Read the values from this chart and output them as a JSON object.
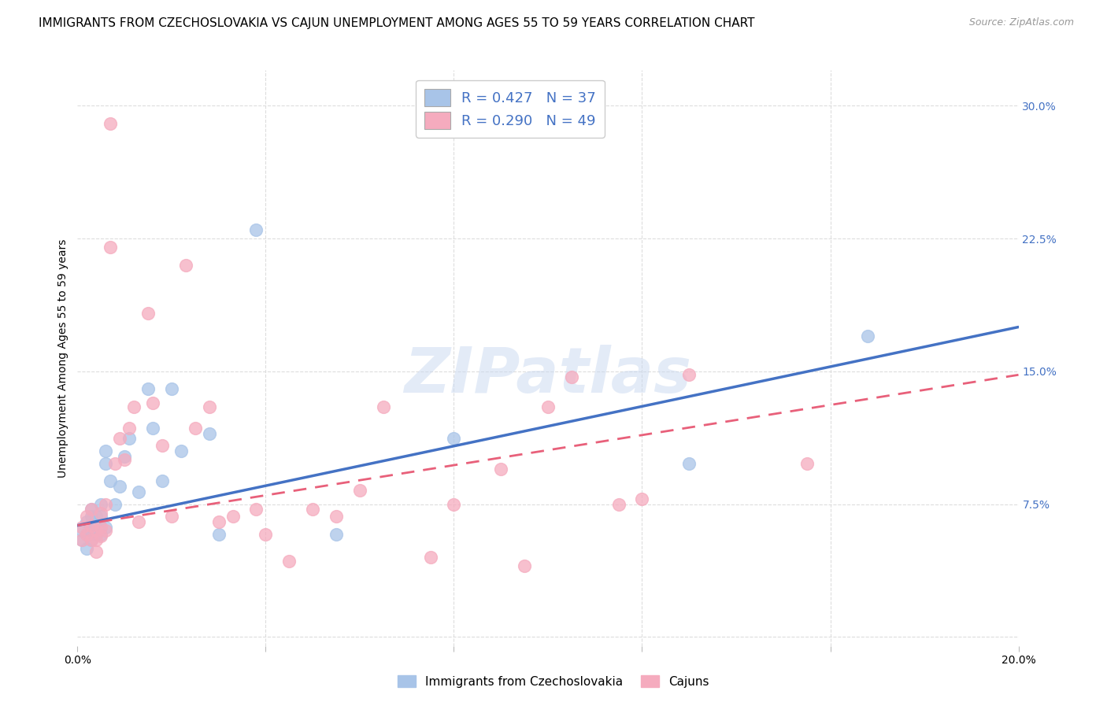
{
  "title": "IMMIGRANTS FROM CZECHOSLOVAKIA VS CAJUN UNEMPLOYMENT AMONG AGES 55 TO 59 YEARS CORRELATION CHART",
  "source": "Source: ZipAtlas.com",
  "ylabel": "Unemployment Among Ages 55 to 59 years",
  "xlim": [
    0.0,
    0.2
  ],
  "ylim": [
    -0.005,
    0.32
  ],
  "y_ticks_right": [
    0.0,
    0.075,
    0.15,
    0.225,
    0.3
  ],
  "y_tick_labels_right": [
    "",
    "7.5%",
    "15.0%",
    "22.5%",
    "30.0%"
  ],
  "legend_labels": [
    "Immigrants from Czechoslovakia",
    "Cajuns"
  ],
  "r_blue": 0.427,
  "n_blue": 37,
  "r_pink": 0.29,
  "n_pink": 49,
  "blue_color": "#A8C4E8",
  "pink_color": "#F5ABBE",
  "blue_line_color": "#4472C4",
  "pink_line_color": "#E8607A",
  "watermark": "ZIPatlas",
  "blue_points_x": [
    0.001,
    0.001,
    0.002,
    0.002,
    0.002,
    0.003,
    0.003,
    0.003,
    0.003,
    0.004,
    0.004,
    0.004,
    0.005,
    0.005,
    0.005,
    0.005,
    0.006,
    0.006,
    0.006,
    0.007,
    0.008,
    0.009,
    0.01,
    0.011,
    0.013,
    0.015,
    0.016,
    0.018,
    0.02,
    0.022,
    0.028,
    0.03,
    0.038,
    0.055,
    0.08,
    0.13,
    0.168
  ],
  "blue_points_y": [
    0.06,
    0.055,
    0.065,
    0.058,
    0.05,
    0.072,
    0.068,
    0.06,
    0.055,
    0.068,
    0.062,
    0.058,
    0.075,
    0.068,
    0.062,
    0.058,
    0.105,
    0.098,
    0.062,
    0.088,
    0.075,
    0.085,
    0.102,
    0.112,
    0.082,
    0.14,
    0.118,
    0.088,
    0.14,
    0.105,
    0.115,
    0.058,
    0.23,
    0.058,
    0.112,
    0.098,
    0.17
  ],
  "pink_points_x": [
    0.001,
    0.001,
    0.002,
    0.002,
    0.003,
    0.003,
    0.003,
    0.004,
    0.004,
    0.004,
    0.005,
    0.005,
    0.005,
    0.006,
    0.006,
    0.007,
    0.007,
    0.008,
    0.009,
    0.01,
    0.011,
    0.012,
    0.013,
    0.015,
    0.016,
    0.018,
    0.02,
    0.023,
    0.025,
    0.028,
    0.03,
    0.033,
    0.038,
    0.04,
    0.045,
    0.05,
    0.055,
    0.06,
    0.065,
    0.075,
    0.08,
    0.09,
    0.095,
    0.1,
    0.105,
    0.115,
    0.12,
    0.13,
    0.155
  ],
  "pink_points_y": [
    0.062,
    0.055,
    0.068,
    0.058,
    0.072,
    0.063,
    0.055,
    0.06,
    0.055,
    0.048,
    0.07,
    0.062,
    0.057,
    0.075,
    0.06,
    0.29,
    0.22,
    0.098,
    0.112,
    0.1,
    0.118,
    0.13,
    0.065,
    0.183,
    0.132,
    0.108,
    0.068,
    0.21,
    0.118,
    0.13,
    0.065,
    0.068,
    0.072,
    0.058,
    0.043,
    0.072,
    0.068,
    0.083,
    0.13,
    0.045,
    0.075,
    0.095,
    0.04,
    0.13,
    0.147,
    0.075,
    0.078,
    0.148,
    0.098
  ],
  "grid_color": "#DDDDDD",
  "background_color": "#FFFFFF",
  "title_fontsize": 11,
  "axis_fontsize": 10,
  "tick_fontsize": 10,
  "right_tick_color": "#4472C4",
  "figsize": [
    14.06,
    8.92
  ]
}
